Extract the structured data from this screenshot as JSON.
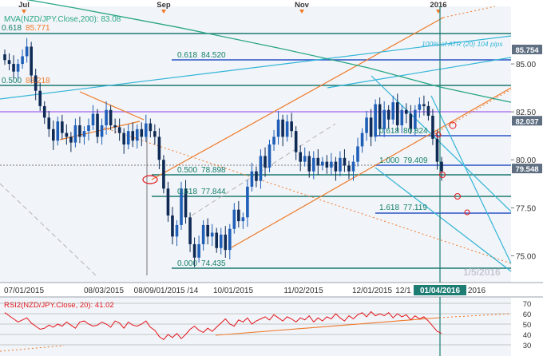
{
  "colors": {
    "background": "#ffffff",
    "panel_bg": "#f1f4f8",
    "up": "#1f5fb8",
    "down": "#0e2a55",
    "ma": "#2aa687",
    "fib": "#15806b",
    "fib_line": "#1d7a70",
    "trend_orange": "#ef7a2a",
    "cyan": "#33b5d8",
    "purple": "#b07cf0",
    "blue_hline": "#2a54c8",
    "axis_text": "#333333",
    "price_box": "#5f6f81",
    "date_box": "#1e7d73",
    "rsi": "#e4161c"
  },
  "main": {
    "price_axis_top": 88.0,
    "price_axis_bottom": 73.6,
    "ma_label": "MVA(NZD/JPY.Close,200): 83.08",
    "atr_label": "100% of ATR (20) 104 pips",
    "watermark": "1/5/2016",
    "price_ticks": [
      {
        "value": 85.0,
        "text": "85.00"
      },
      {
        "value": 82.5,
        "text": "82.50"
      },
      {
        "value": 80.0,
        "text": "80.00"
      },
      {
        "value": 77.5,
        "text": "77.50"
      },
      {
        "value": 75.0,
        "text": "75.00"
      }
    ],
    "price_boxes": [
      {
        "value": 85.754,
        "text": "85.754",
        "color": "#5f6f81"
      },
      {
        "value": 82.037,
        "text": "82.037",
        "color": "#5f6f81"
      },
      {
        "value": 79.548,
        "text": "79.548",
        "color": "#5f6f81"
      }
    ],
    "month_labels": [
      {
        "text": "Jul",
        "x": 30
      },
      {
        "text": "Sep",
        "x": 205
      },
      {
        "text": "Nov",
        "x": 378
      },
      {
        "text": "2016",
        "x": 549
      }
    ],
    "date_labels": [
      {
        "text": "07/01/2015",
        "x": 30
      },
      {
        "text": "08/03/2015",
        "x": 130
      },
      {
        "text": "08/09/01/2015 /14",
        "x": 208
      },
      {
        "text": "10/01/2015",
        "x": 292
      },
      {
        "text": "11/02/2015",
        "x": 380
      },
      {
        "text": "12/01/2015",
        "x": 466
      },
      {
        "text": "12/1",
        "x": 505
      }
    ],
    "current_date": "01/04/2016",
    "after_date": "2016",
    "fib_levels": [
      {
        "ratio": "0.618",
        "value": "85.771",
        "price": 85.771
      },
      {
        "ratio": "0.500",
        "value": "83.218",
        "price": 83.218
      },
      {
        "ratio": "0.618",
        "value": "84.520",
        "price": 84.52
      },
      {
        "ratio": "0.618",
        "value": "80.824",
        "price": 80.824
      },
      {
        "ratio": "1.000",
        "value": "79.409",
        "price": 79.409
      },
      {
        "ratio": "0.500",
        "value": "78.898",
        "price": 78.898
      },
      {
        "ratio": "0.618",
        "value": "77.844",
        "price": 77.844
      },
      {
        "ratio": "1.618",
        "value": "77.119",
        "price": 77.119
      },
      {
        "ratio": "0.000",
        "value": "74.435",
        "price": 74.435
      }
    ]
  },
  "rsi": {
    "label": "RSI2(NZD/JPY.Close, 20): 41.02",
    "top": 70,
    "bottom": 30,
    "ticks": [
      "70",
      "60",
      "50",
      "40",
      "30"
    ]
  },
  "chart_data": {
    "type": "candlestick",
    "symbol": "NZD/JPY",
    "indicators": [
      "MVA 200",
      "RSI 20"
    ],
    "closes": [
      85.2,
      85.0,
      84.6,
      85.0,
      85.4,
      85.9,
      84.4,
      83.6,
      82.8,
      82.2,
      81.6,
      81.0,
      82.0,
      81.4,
      81.2,
      80.9,
      81.8,
      81.2,
      81.5,
      81.8,
      82.4,
      81.2,
      81.8,
      82.6,
      81.8,
      81.7,
      81.4,
      80.8,
      81.5,
      81.0,
      81.6,
      81.2,
      81.9,
      81.5,
      81.2,
      80.0,
      78.5,
      77.1,
      76.0,
      76.6,
      78.5,
      77.0,
      75.6,
      74.9,
      75.6,
      76.6,
      76.0,
      76.2,
      75.4,
      76.1,
      75.3,
      76.4,
      77.4,
      76.8,
      77.0,
      78.6,
      79.4,
      78.9,
      80.2,
      79.6,
      80.8,
      81.2,
      82.1,
      81.2,
      82.0,
      81.5,
      80.4,
      79.9,
      80.2,
      79.4,
      80.1,
      79.7,
      79.9,
      79.6,
      79.9,
      79.4,
      80.1,
      79.7,
      79.4,
      79.9,
      80.7,
      81.4,
      82.2,
      81.2,
      82.9,
      81.6,
      82.6,
      82.1,
      83.0,
      81.8,
      82.6,
      82.4,
      81.6,
      82.6,
      82.9,
      82.8,
      82.3,
      81.1,
      79.9,
      79.4
    ],
    "ma200": [
      {
        "x": 0,
        "price": 88.6
      },
      {
        "x": 0.15,
        "price": 87.9
      },
      {
        "x": 0.35,
        "price": 86.9
      },
      {
        "x": 0.55,
        "price": 85.8
      },
      {
        "x": 0.72,
        "price": 84.8
      },
      {
        "x": 0.86,
        "price": 83.8
      },
      {
        "x": 1.0,
        "price": 83.0
      }
    ],
    "rsi_values": [
      61,
      58,
      55,
      52,
      54,
      56,
      51,
      48,
      45,
      46,
      49,
      47,
      50,
      48,
      52,
      49,
      46,
      52,
      53,
      50,
      48,
      49,
      52,
      50,
      47,
      53,
      51,
      46,
      52,
      49,
      48,
      50,
      53,
      47,
      44,
      38,
      35,
      40,
      37,
      41,
      36,
      40,
      45,
      48,
      44,
      42,
      46,
      43,
      47,
      51,
      55,
      50,
      48,
      54,
      52,
      56,
      50,
      53,
      55,
      57,
      54,
      59,
      56,
      53,
      57,
      55,
      52,
      56,
      54,
      58,
      52,
      56,
      53,
      57,
      55,
      60,
      56,
      53,
      58,
      55,
      59,
      61,
      57,
      62,
      58,
      60,
      58,
      61,
      56,
      60,
      57,
      59,
      54,
      58,
      55,
      57,
      53,
      48,
      43,
      41
    ]
  }
}
